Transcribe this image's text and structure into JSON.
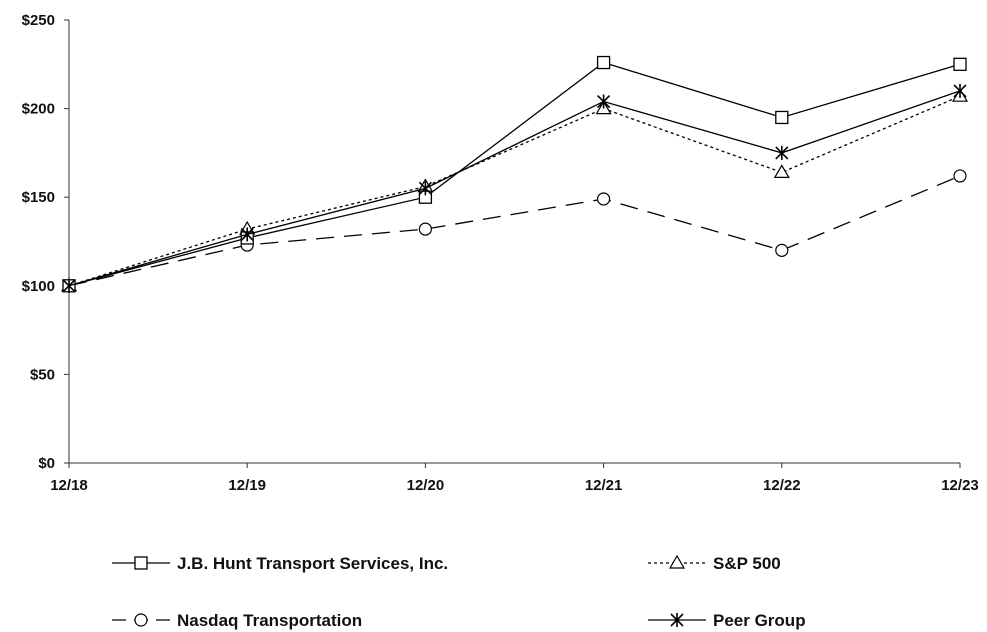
{
  "chart_data": {
    "type": "line",
    "title": "",
    "xlabel": "",
    "ylabel": "",
    "categories": [
      "12/18",
      "12/19",
      "12/20",
      "12/21",
      "12/22",
      "12/23"
    ],
    "y_ticks": [
      "$0",
      "$50",
      "$100",
      "$150",
      "$200",
      "$250"
    ],
    "ylim": [
      0,
      250
    ],
    "grid": false,
    "legend_position": "bottom",
    "series": [
      {
        "name": "J.B. Hunt Transport Services, Inc.",
        "values": [
          100,
          127,
          150,
          226,
          195,
          225
        ],
        "marker": "square",
        "line_style": "solid",
        "color": "#000000"
      },
      {
        "name": "S&P 500",
        "values": [
          100,
          132,
          156,
          200,
          164,
          207
        ],
        "marker": "triangle",
        "line_style": "dotted",
        "color": "#000000"
      },
      {
        "name": "Nasdaq Transportation",
        "values": [
          100,
          123,
          132,
          149,
          120,
          162
        ],
        "marker": "circle",
        "line_style": "dashed",
        "color": "#000000"
      },
      {
        "name": "Peer Group",
        "values": [
          100,
          129,
          155,
          204,
          175,
          210
        ],
        "marker": "asterisk",
        "line_style": "solid",
        "color": "#000000"
      }
    ]
  }
}
